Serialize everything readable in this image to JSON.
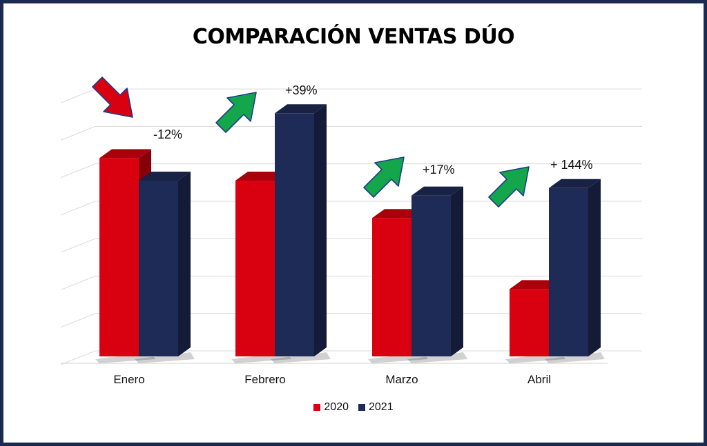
{
  "chart_data": {
    "type": "bar",
    "title": "COMPARACIÓN VENTAS DÚO",
    "categories": [
      "Enero",
      "Febrero",
      "Marzo",
      "Abril"
    ],
    "series": [
      {
        "name": "2020",
        "color": "#d9000f",
        "values": [
          5.3,
          4.7,
          3.7,
          1.8
        ]
      },
      {
        "name": "2021",
        "color": "#1f2b57",
        "values": [
          4.7,
          6.5,
          4.3,
          4.5
        ]
      }
    ],
    "ylim": [
      0,
      7.5
    ],
    "grid": true,
    "legend_position": "bottom",
    "annotations": [
      {
        "category": "Enero",
        "text": "-12%",
        "arrow": "down",
        "color": "#d9000f"
      },
      {
        "category": "Febrero",
        "text": "+39%",
        "arrow": "up",
        "color": "#13a64b"
      },
      {
        "category": "Marzo",
        "text": "+17%",
        "arrow": "up",
        "color": "#13a64b"
      },
      {
        "category": "Abril",
        "text": "+ 144%",
        "arrow": "up",
        "color": "#13a64b"
      }
    ]
  }
}
